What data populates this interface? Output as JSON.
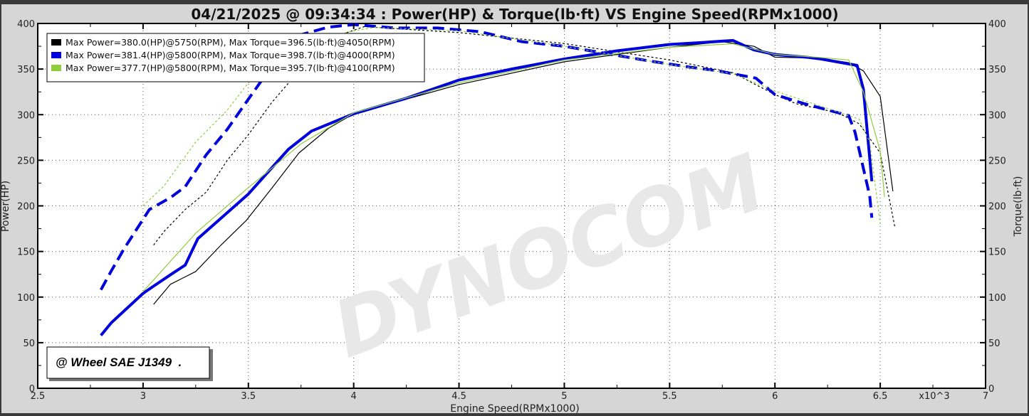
{
  "chart_data": {
    "type": "line",
    "title": "04/21/2025 @ 09:34:34 : Power(HP) & Torque(lb·ft) VS Engine Speed(RPMx1000)",
    "xlabel": "Engine Speed(RPMx1000)",
    "xlabel_multiplier": "x10^3",
    "ylabel_left": "Power(HP)",
    "ylabel_right": "Torque(lb·ft)",
    "xlim": [
      2.5,
      7
    ],
    "ylim_left": [
      0,
      400
    ],
    "ylim_right": [
      0,
      400
    ],
    "x_ticks": [
      "2.5",
      "3",
      "3.5",
      "4",
      "4.5",
      "5",
      "5.5",
      "6",
      "6.5",
      "7"
    ],
    "y_ticks": [
      "0",
      "50",
      "100",
      "150",
      "200",
      "250",
      "300",
      "350",
      "400"
    ],
    "grid": true,
    "legend_position": "top-left",
    "annotation": "@ Wheel SAE J1349  .",
    "watermark": "DYNOCOM",
    "series": [
      {
        "name": "Max Power=380.0(HP)@5750(RPM), Max Torque=396.5(lb·ft)@4050(RPM)",
        "color": "#000000",
        "power": {
          "x": [
            3.05,
            3.13,
            3.25,
            3.37,
            3.49,
            3.61,
            3.74,
            3.88,
            4.0,
            4.5,
            5.0,
            5.5,
            5.75,
            5.9,
            6.0,
            6.2,
            6.35,
            6.42,
            6.5,
            6.56
          ],
          "y": [
            92,
            114,
            128,
            157,
            184,
            219,
            258,
            285,
            301,
            333,
            358,
            374,
            380,
            375,
            363,
            362,
            357,
            348,
            320,
            216
          ]
        },
        "torque": {
          "x": [
            3.05,
            3.1,
            3.2,
            3.3,
            3.4,
            3.5,
            3.61,
            3.74,
            3.88,
            4.05,
            4.5,
            5.0,
            5.5,
            5.8,
            6.0,
            6.1,
            6.3,
            6.4,
            6.5,
            6.57
          ],
          "y": [
            157,
            172,
            196,
            215,
            250,
            278,
            313,
            348,
            383,
            396.5,
            390,
            378,
            360,
            346,
            322,
            312,
            302,
            290,
            258,
            176
          ]
        }
      },
      {
        "name": "Max Power=381.4(HP)@5800(RPM), Max Torque=398.7(lb·ft)@4000(RPM)",
        "color": "#0000dd",
        "power": {
          "x": [
            2.8,
            2.85,
            3.0,
            3.05,
            3.14,
            3.2,
            3.26,
            3.5,
            3.69,
            3.8,
            4.0,
            4.25,
            4.5,
            4.75,
            5.0,
            5.25,
            5.5,
            5.65,
            5.8,
            5.9,
            6.0,
            6.15,
            6.22,
            6.39,
            6.42,
            6.46
          ],
          "y": [
            58,
            72,
            104,
            112,
            126,
            135,
            164,
            213,
            262,
            282,
            301,
            318,
            338,
            350,
            361,
            370,
            377,
            379,
            381.4,
            371,
            366,
            363,
            361,
            354,
            328,
            227
          ]
        },
        "torque": {
          "x": [
            2.8,
            2.85,
            2.91,
            3.03,
            3.13,
            3.2,
            3.3,
            3.4,
            3.5,
            3.62,
            3.74,
            3.88,
            4.0,
            4.2,
            4.4,
            4.6,
            4.8,
            5.0,
            5.2,
            5.4,
            5.6,
            5.73,
            5.91,
            6.0,
            6.14,
            6.35,
            6.38,
            6.43,
            6.45,
            6.46
          ],
          "y": [
            108,
            129,
            153,
            196,
            209,
            221,
            256,
            284,
            317,
            356,
            387,
            396,
            398.7,
            395,
            395,
            391,
            380,
            375,
            367,
            359,
            352,
            348,
            340,
            322,
            312,
            299,
            281,
            231,
            211,
            187
          ]
        }
      },
      {
        "name": "Max Power=377.7(HP)@5800(RPM), Max Torque=395.7(lb·ft)@4100(RPM)",
        "color": "#8fce3a",
        "power": {
          "x": [
            3.0,
            3.25,
            3.5,
            3.75,
            4.0,
            4.5,
            5.0,
            5.5,
            5.8,
            6.0,
            6.2,
            6.35,
            6.42,
            6.5,
            6.52
          ],
          "y": [
            106,
            170,
            220,
            268,
            302,
            335,
            360,
            374,
            377.7,
            366,
            363,
            360,
            325,
            260,
            210
          ]
        },
        "torque": {
          "x": [
            3.0,
            3.1,
            3.25,
            3.4,
            3.5,
            3.75,
            4.0,
            4.1,
            4.5,
            5.0,
            5.5,
            5.8,
            6.0,
            6.3,
            6.4,
            6.45,
            6.5
          ],
          "y": [
            200,
            222,
            270,
            305,
            335,
            378,
            392,
            395.7,
            392,
            375,
            355,
            345,
            326,
            303,
            295,
            270,
            180
          ]
        }
      }
    ]
  }
}
